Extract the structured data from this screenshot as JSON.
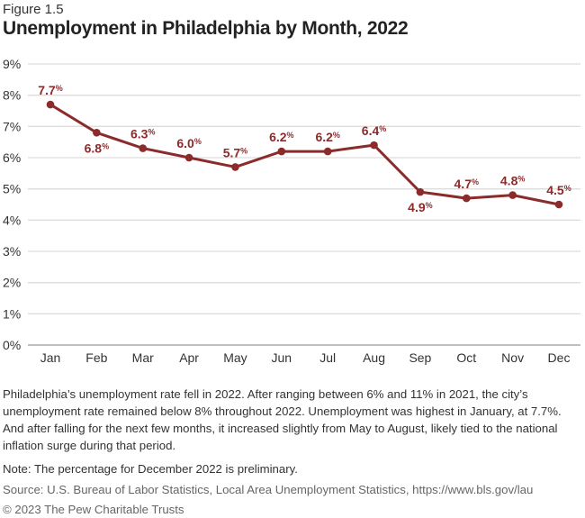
{
  "figure_label": "Figure 1.5",
  "chart_data": {
    "type": "line",
    "title": "Unemployment in Philadelphia by Month, 2022",
    "categories": [
      "Jan",
      "Feb",
      "Mar",
      "Apr",
      "May",
      "Jun",
      "Jul",
      "Aug",
      "Sep",
      "Oct",
      "Nov",
      "Dec"
    ],
    "values": [
      7.7,
      6.8,
      6.3,
      6.0,
      5.7,
      6.2,
      6.2,
      6.4,
      4.9,
      4.7,
      4.8,
      4.5
    ],
    "data_labels": [
      "7.7%",
      "6.8%",
      "6.3%",
      "6.0%",
      "5.7%",
      "6.2%",
      "6.2%",
      "6.4%",
      "4.9%",
      "4.7%",
      "4.8%",
      "4.5%"
    ],
    "yticks": [
      "0%",
      "1%",
      "2%",
      "3%",
      "4%",
      "5%",
      "6%",
      "7%",
      "8%",
      "9%"
    ],
    "ylim": [
      0,
      9
    ],
    "grid": true,
    "color": "#8b2b2b"
  },
  "description": "Philadelphia’s unemployment rate fell in 2022. After ranging between 6% and 11% in 2021, the city’s unemployment rate remained below 8% throughout 2022. Unemployment was highest in January, at 7.7%. And after falling for the next few months, it increased slightly from May to August, likely tied to the national inflation surge during that period.",
  "note": "Note: The percentage for December 2022 is preliminary.",
  "source": "Source: U.S. Bureau of Labor Statistics, Local Area Unemployment Statistics, https://www.bls.gov/lau",
  "copyright": "© 2023 The Pew Charitable Trusts"
}
